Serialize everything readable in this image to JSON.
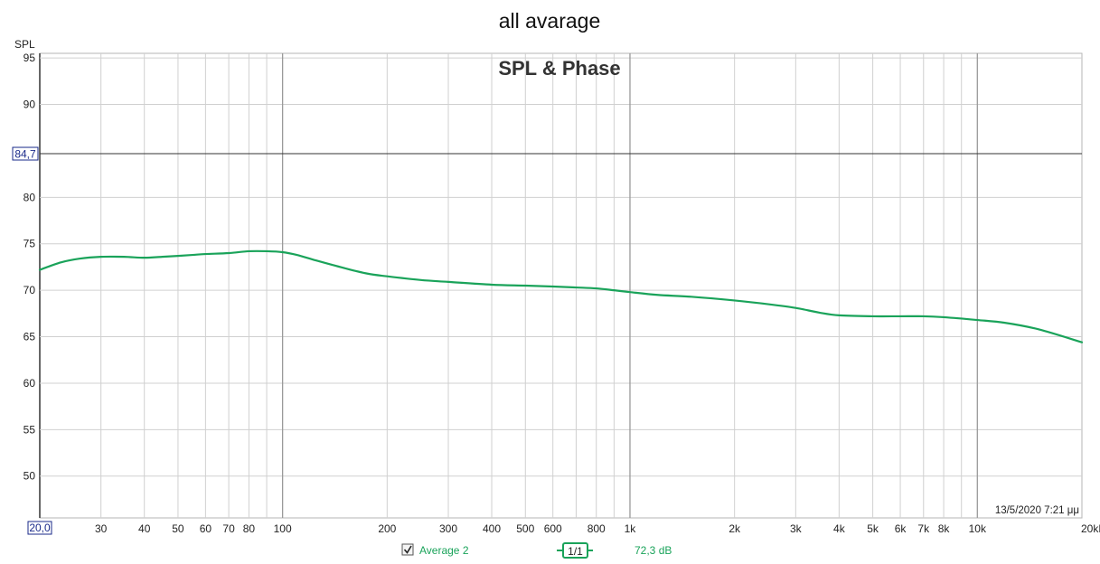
{
  "page_title": "all avarage",
  "colors": {
    "trace": "#1aa35a",
    "grid_major": "#9a9a9a",
    "grid_minor": "#d0d0d0",
    "cursor": "#1a2a8a",
    "frame": "#b5b5b5"
  },
  "timestamp": "13/5/2020 7:21 μμ",
  "cursor": {
    "y_value": 84.7,
    "y_label": "84,7",
    "x_label": "20,0"
  },
  "legend": {
    "checked": true,
    "series_name": "Average 2",
    "smoothing_label": "1/1",
    "value_label": "72,3 dB",
    "checkbox_icon": "checkbox-checked-icon"
  },
  "chart_data": {
    "type": "line",
    "title": "SPL & Phase",
    "ylabel": "SPL",
    "xlabel": "",
    "x_scale": "log",
    "xlim": [
      20,
      20000
    ],
    "ylim": [
      45.5,
      95.5
    ],
    "grid": true,
    "y_ticks": [
      {
        "v": 95,
        "label": "95"
      },
      {
        "v": 90,
        "label": "90"
      },
      {
        "v": 80,
        "label": "80"
      },
      {
        "v": 75,
        "label": "75"
      },
      {
        "v": 70,
        "label": "70"
      },
      {
        "v": 65,
        "label": "65"
      },
      {
        "v": 60,
        "label": "60"
      },
      {
        "v": 55,
        "label": "55"
      },
      {
        "v": 50,
        "label": "50"
      }
    ],
    "x_ticks": [
      {
        "v": 30,
        "label": "30"
      },
      {
        "v": 40,
        "label": "40"
      },
      {
        "v": 50,
        "label": "50"
      },
      {
        "v": 60,
        "label": "60"
      },
      {
        "v": 70,
        "label": "70"
      },
      {
        "v": 80,
        "label": "80"
      },
      {
        "v": 100,
        "label": "100"
      },
      {
        "v": 200,
        "label": "200"
      },
      {
        "v": 300,
        "label": "300"
      },
      {
        "v": 400,
        "label": "400"
      },
      {
        "v": 500,
        "label": "500"
      },
      {
        "v": 600,
        "label": "600"
      },
      {
        "v": 800,
        "label": "800"
      },
      {
        "v": 1000,
        "label": "1k"
      },
      {
        "v": 2000,
        "label": "2k"
      },
      {
        "v": 3000,
        "label": "3k"
      },
      {
        "v": 4000,
        "label": "4k"
      },
      {
        "v": 5000,
        "label": "5k"
      },
      {
        "v": 6000,
        "label": "6k"
      },
      {
        "v": 7000,
        "label": "7k"
      },
      {
        "v": 8000,
        "label": "8k"
      },
      {
        "v": 10000,
        "label": "10k"
      },
      {
        "v": 20000,
        "label": "20kHz"
      }
    ],
    "x_grid_major": [
      100,
      1000,
      10000
    ],
    "x_grid_minor": [
      30,
      40,
      50,
      60,
      70,
      80,
      90,
      200,
      300,
      400,
      500,
      600,
      700,
      800,
      900,
      2000,
      3000,
      4000,
      5000,
      6000,
      7000,
      8000,
      9000
    ],
    "series": [
      {
        "name": "Average 2",
        "x": [
          20,
          23,
          26,
          30,
          35,
          40,
          45,
          50,
          55,
          60,
          70,
          80,
          90,
          100,
          110,
          125,
          150,
          175,
          200,
          250,
          300,
          400,
          500,
          600,
          700,
          800,
          900,
          1000,
          1200,
          1500,
          2000,
          2500,
          3000,
          3500,
          4000,
          5000,
          6000,
          7000,
          8000,
          10000,
          12000,
          15000,
          20000
        ],
        "y": [
          72.2,
          73.0,
          73.4,
          73.6,
          73.6,
          73.5,
          73.6,
          73.7,
          73.8,
          73.9,
          74.0,
          74.2,
          74.2,
          74.1,
          73.8,
          73.2,
          72.4,
          71.8,
          71.5,
          71.1,
          70.9,
          70.6,
          70.5,
          70.4,
          70.3,
          70.2,
          70.0,
          69.8,
          69.5,
          69.3,
          68.9,
          68.5,
          68.1,
          67.6,
          67.3,
          67.2,
          67.2,
          67.2,
          67.1,
          66.8,
          66.5,
          65.8,
          64.4
        ]
      }
    ]
  }
}
